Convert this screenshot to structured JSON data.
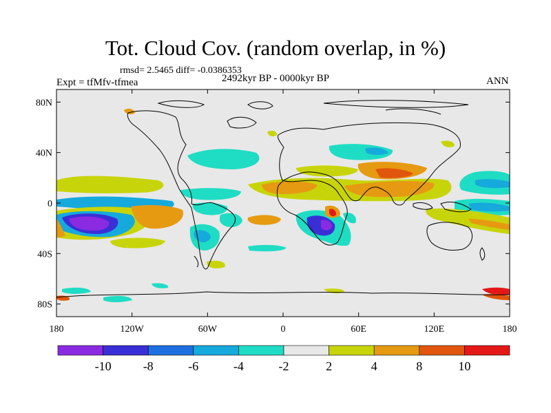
{
  "header": {
    "title": "Tot. Cloud Cov. (random overlap, in %)",
    "stats": "rmsd= 2.5465 diff= -0.0386353",
    "experiment": "Expt = tfMfv-tfmea",
    "period": "2492kyr BP - 0000kyr BP",
    "season": "ANN"
  },
  "axes": {
    "lat_labels": [
      "80N",
      "40N",
      "0",
      "40S",
      "80S"
    ],
    "lat_values": [
      80,
      40,
      0,
      -40,
      -80
    ],
    "lon_labels": [
      "180",
      "120W",
      "60W",
      "0",
      "60E",
      "120E",
      "180"
    ],
    "lon_values": [
      -180,
      -120,
      -60,
      0,
      60,
      120,
      180
    ]
  },
  "colorbar": {
    "labels": [
      "-10",
      "-8",
      "-6",
      "-4",
      "-2",
      "2",
      "4",
      "8",
      "10"
    ],
    "colors": [
      "#8a2be2",
      "#3a2fd6",
      "#1e6fe0",
      "#16a9dc",
      "#1fdcc4",
      "#e8e8e8",
      "#c8d40a",
      "#e69a12",
      "#e0560c",
      "#e41818"
    ]
  },
  "colors": {
    "land_outline": "#000000",
    "background_field": "#e8e8e8"
  }
}
